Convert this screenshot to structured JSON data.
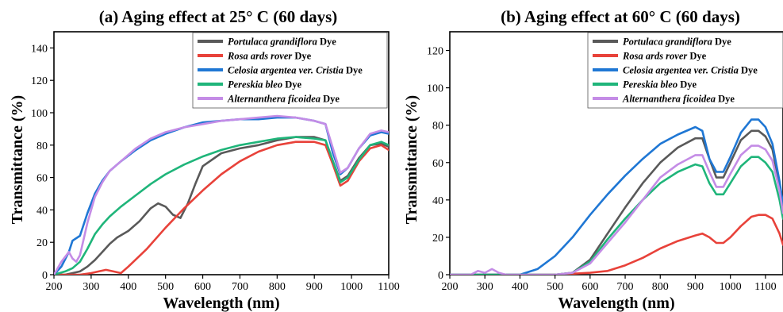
{
  "chart_data": [
    {
      "type": "line",
      "title": "(a) Aging effect at 25° C (60 days)",
      "xlabel": "Wavelength (nm)",
      "ylabel": "Transmittance (%)",
      "xlim": [
        200,
        1100
      ],
      "ylim": [
        0,
        150
      ],
      "xticks": [
        200,
        300,
        400,
        500,
        600,
        700,
        800,
        900,
        1000,
        1100
      ],
      "yticks": [
        0,
        20,
        40,
        60,
        80,
        100,
        120,
        140
      ],
      "legend": "top-right",
      "series": [
        {
          "name_italic": "Portulaca grandiflora",
          "name_suffix": " Dye",
          "color": "#595959",
          "x": [
            200,
            230,
            250,
            270,
            290,
            310,
            330,
            350,
            370,
            400,
            430,
            460,
            480,
            500,
            520,
            540,
            560,
            580,
            600,
            650,
            700,
            750,
            800,
            850,
            900,
            930,
            950,
            970,
            990,
            1020,
            1050,
            1080,
            1100
          ],
          "y": [
            0,
            0,
            1,
            2,
            5,
            9,
            14,
            19,
            23,
            27,
            33,
            41,
            44,
            42,
            37,
            35,
            44,
            56,
            67,
            75,
            78,
            80,
            83,
            85,
            85,
            83,
            70,
            58,
            61,
            72,
            80,
            81,
            79
          ]
        },
        {
          "name_italic": "Rosa ards rover",
          "name_suffix": " Dye",
          "color": "#e8423a",
          "x": [
            200,
            240,
            270,
            300,
            320,
            340,
            360,
            380,
            400,
            450,
            500,
            550,
            600,
            650,
            700,
            750,
            800,
            850,
            900,
            930,
            950,
            970,
            990,
            1020,
            1050,
            1080,
            1100
          ],
          "y": [
            0,
            0,
            0,
            1,
            2,
            3,
            2,
            1,
            5,
            16,
            29,
            41,
            52,
            62,
            70,
            76,
            80,
            82,
            82,
            80,
            68,
            55,
            58,
            70,
            78,
            80,
            77
          ]
        },
        {
          "name_italic": "Celosia argentea ver. Cristia",
          "name_suffix": " Dye",
          "color": "#1f77d4",
          "x": [
            200,
            220,
            240,
            250,
            270,
            290,
            310,
            330,
            350,
            380,
            420,
            460,
            500,
            550,
            600,
            650,
            700,
            750,
            800,
            850,
            900,
            930,
            950,
            970,
            990,
            1020,
            1050,
            1080,
            1100
          ],
          "y": [
            0,
            5,
            14,
            21,
            24,
            38,
            50,
            58,
            64,
            70,
            77,
            83,
            87,
            91,
            94,
            95,
            96,
            96,
            97,
            97,
            95,
            93,
            75,
            62,
            66,
            78,
            86,
            88,
            87
          ]
        },
        {
          "name_italic": "Pereskia bleo",
          "name_suffix": " Dye",
          "color": "#1fb57a",
          "x": [
            200,
            230,
            250,
            270,
            290,
            310,
            330,
            350,
            380,
            420,
            460,
            500,
            550,
            600,
            650,
            700,
            750,
            800,
            850,
            900,
            930,
            950,
            970,
            990,
            1020,
            1050,
            1080,
            1100
          ],
          "y": [
            0,
            2,
            4,
            8,
            16,
            25,
            31,
            36,
            42,
            49,
            56,
            62,
            68,
            73,
            77,
            80,
            82,
            84,
            85,
            84,
            83,
            70,
            57,
            60,
            71,
            80,
            82,
            80
          ]
        },
        {
          "name_italic": "Alternanthera ficoidea",
          "name_suffix": " Dye",
          "color": "#c48ce6",
          "x": [
            200,
            220,
            240,
            250,
            260,
            270,
            290,
            310,
            330,
            350,
            380,
            420,
            460,
            500,
            550,
            600,
            650,
            700,
            750,
            800,
            850,
            900,
            930,
            950,
            970,
            990,
            1020,
            1050,
            1080,
            1100
          ],
          "y": [
            0,
            8,
            14,
            10,
            8,
            12,
            32,
            48,
            57,
            64,
            70,
            78,
            84,
            88,
            91,
            93,
            95,
            96,
            97,
            98,
            97,
            95,
            93,
            78,
            63,
            66,
            78,
            87,
            89,
            88
          ]
        }
      ]
    },
    {
      "type": "line",
      "title": "(b) Aging effect at 60° C (60 days)",
      "xlabel": "Wavelength (nm)",
      "ylabel": "Transmittance (%)",
      "xlim": [
        200,
        1150
      ],
      "ylim": [
        0,
        130
      ],
      "xticks": [
        200,
        300,
        400,
        500,
        600,
        700,
        800,
        900,
        1000,
        1100
      ],
      "yticks": [
        0,
        20,
        40,
        60,
        80,
        100,
        120
      ],
      "legend": "top-right",
      "series": [
        {
          "name_italic": "Portulaca grandiflora",
          "name_suffix": " Dye",
          "color": "#595959",
          "x": [
            200,
            300,
            400,
            500,
            550,
            600,
            650,
            700,
            750,
            800,
            850,
            900,
            920,
            940,
            960,
            980,
            1000,
            1030,
            1060,
            1080,
            1100,
            1120,
            1140,
            1150
          ],
          "y": [
            0,
            0,
            0,
            0,
            1,
            8,
            22,
            36,
            49,
            60,
            68,
            73,
            73,
            62,
            52,
            52,
            60,
            72,
            77,
            77,
            74,
            67,
            48,
            35
          ]
        },
        {
          "name_italic": "Rosa ards rover",
          "name_suffix": " Dye",
          "color": "#e8423a",
          "x": [
            200,
            300,
            400,
            500,
            600,
            650,
            700,
            750,
            800,
            850,
            900,
            920,
            940,
            960,
            980,
            1000,
            1030,
            1060,
            1080,
            1100,
            1120,
            1140,
            1150
          ],
          "y": [
            0,
            0,
            0,
            0,
            1,
            2,
            5,
            9,
            14,
            18,
            21,
            22,
            20,
            17,
            17,
            20,
            26,
            31,
            32,
            32,
            30,
            22,
            16
          ]
        },
        {
          "name_italic": "Celosia argentea ver. Cristia",
          "name_suffix": " Dye",
          "color": "#1f77d4",
          "x": [
            200,
            300,
            400,
            450,
            500,
            550,
            600,
            650,
            700,
            750,
            800,
            850,
            900,
            920,
            940,
            960,
            980,
            1000,
            1030,
            1060,
            1080,
            1100,
            1120,
            1140,
            1150
          ],
          "y": [
            0,
            0,
            0,
            3,
            10,
            20,
            32,
            43,
            53,
            62,
            70,
            75,
            79,
            77,
            62,
            55,
            55,
            63,
            76,
            83,
            83,
            79,
            70,
            50,
            38
          ]
        },
        {
          "name_italic": "Pereskia bleo",
          "name_suffix": " Dye",
          "color": "#1fb57a",
          "x": [
            200,
            300,
            400,
            500,
            550,
            600,
            650,
            700,
            750,
            800,
            850,
            900,
            920,
            940,
            960,
            980,
            1000,
            1030,
            1060,
            1080,
            1100,
            1120,
            1140,
            1150
          ],
          "y": [
            0,
            0,
            0,
            0,
            1,
            7,
            19,
            30,
            40,
            49,
            55,
            59,
            58,
            49,
            43,
            43,
            49,
            58,
            63,
            63,
            60,
            55,
            40,
            30
          ]
        },
        {
          "name_italic": "Alternanthera ficoidea",
          "name_suffix": " Dye",
          "color": "#c48ce6",
          "x": [
            200,
            260,
            280,
            300,
            320,
            340,
            360,
            400,
            500,
            550,
            600,
            650,
            700,
            750,
            800,
            850,
            900,
            920,
            940,
            960,
            980,
            1000,
            1030,
            1060,
            1080,
            1100,
            1120,
            1140,
            1150
          ],
          "y": [
            0,
            0,
            2,
            1,
            3,
            1,
            0,
            0,
            0,
            1,
            6,
            17,
            28,
            40,
            52,
            59,
            64,
            64,
            55,
            47,
            47,
            54,
            64,
            69,
            69,
            67,
            61,
            45,
            33
          ]
        }
      ]
    }
  ]
}
